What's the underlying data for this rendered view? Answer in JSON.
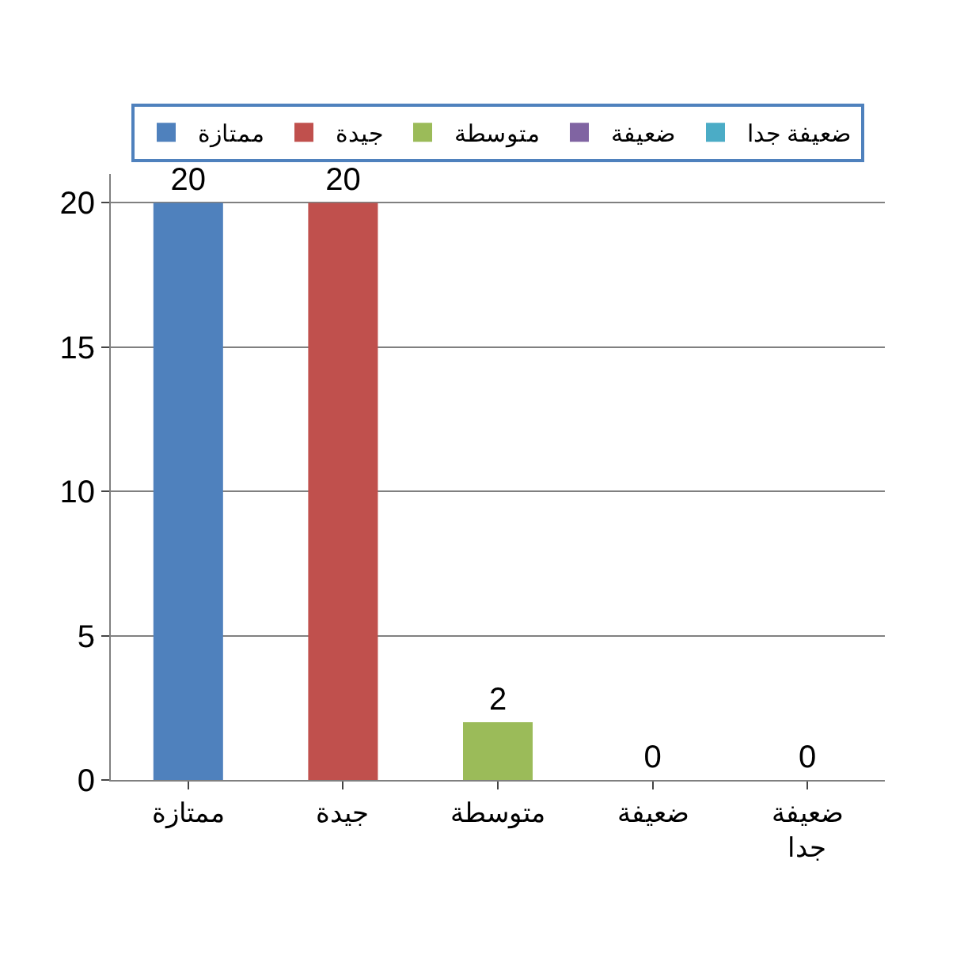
{
  "chart_data": {
    "type": "bar",
    "categories": [
      "ممتازة",
      "جيدة",
      "متوسطة",
      "ضعيفة",
      "ضعيفة جدا"
    ],
    "series": [
      {
        "name": "ممتازة",
        "color": "#4f81bd",
        "values": [
          20,
          null,
          null,
          null,
          null
        ]
      },
      {
        "name": "جيدة",
        "color": "#c0504d",
        "values": [
          null,
          20,
          null,
          null,
          null
        ]
      },
      {
        "name": "متوسطة",
        "color": "#9bbb59",
        "values": [
          null,
          null,
          2,
          null,
          null
        ]
      },
      {
        "name": "ضعيفة",
        "color": "#8064a2",
        "values": [
          null,
          null,
          null,
          0,
          null
        ]
      },
      {
        "name": "ضعيفة جدا",
        "color": "#4bacc6",
        "values": [
          null,
          null,
          null,
          null,
          0
        ]
      }
    ],
    "ylim": [
      0,
      21
    ],
    "yticks": [
      0,
      5,
      10,
      15,
      20
    ],
    "grid": "y",
    "legend": "top",
    "data_labels": true
  }
}
